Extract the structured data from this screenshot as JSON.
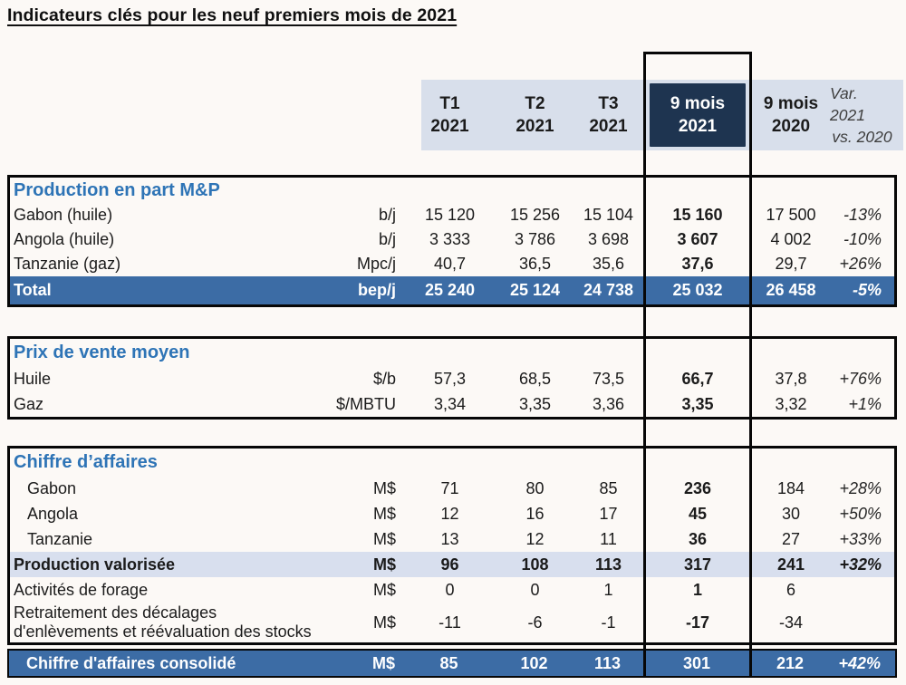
{
  "title": "Indicateurs clés pour les neuf premiers mois de 2021",
  "colors": {
    "accent_blue": "#2E74B6",
    "navy_header_cell": "#1E3450",
    "total_row_blue": "#3C6CA5",
    "header_band": "#D8DFEB",
    "subtotal_row_bg": "#D8DFEE"
  },
  "header": {
    "columns": [
      {
        "line1": "T1",
        "line2": "2021",
        "style": "bold"
      },
      {
        "line1": "T2",
        "line2": "2021",
        "style": "bold"
      },
      {
        "line1": "T3",
        "line2": "2021",
        "style": "bold"
      },
      {
        "line1": "9 mois",
        "line2": "2021",
        "style": "highlight"
      },
      {
        "line1": "9 mois",
        "line2": "2020",
        "style": "bold"
      },
      {
        "line1": "Var. 2021",
        "line2": "vs. 2020",
        "style": "italic"
      }
    ]
  },
  "sections": [
    {
      "title": "Production en part M&P",
      "rows": [
        {
          "label": "Gabon (huile)",
          "unit": "b/j",
          "indent": false,
          "style": "normal",
          "values": [
            "15 120",
            "15 256",
            "15 104",
            "15 160",
            "17 500",
            "-13%"
          ]
        },
        {
          "label": "Angola (huile)",
          "unit": "b/j",
          "indent": false,
          "style": "normal",
          "values": [
            "3 333",
            "3 786",
            "3 698",
            "3 607",
            "4 002",
            "-10%"
          ]
        },
        {
          "label": "Tanzanie (gaz)",
          "unit": "Mpc/j",
          "indent": false,
          "style": "normal",
          "values": [
            "40,7",
            "36,5",
            "35,6",
            "37,6",
            "29,7",
            "+26%"
          ]
        },
        {
          "label": "Total",
          "unit": "bep/j",
          "indent": false,
          "style": "total",
          "values": [
            "25 240",
            "25 124",
            "24 738",
            "25 032",
            "26 458",
            "-5%"
          ]
        }
      ]
    },
    {
      "title": "Prix de vente moyen",
      "rows": [
        {
          "label": "Huile",
          "unit": "$/b",
          "indent": false,
          "style": "normal",
          "values": [
            "57,3",
            "68,5",
            "73,5",
            "66,7",
            "37,8",
            "+76%"
          ]
        },
        {
          "label": "Gaz",
          "unit": "$/MBTU",
          "indent": false,
          "style": "normal",
          "values": [
            "3,34",
            "3,35",
            "3,36",
            "3,35",
            "3,32",
            "+1%"
          ]
        }
      ]
    },
    {
      "title": "Chiffre d’affaires",
      "rows": [
        {
          "label": "Gabon",
          "unit": "M$",
          "indent": true,
          "style": "normal",
          "values": [
            "71",
            "80",
            "85",
            "236",
            "184",
            "+28%"
          ]
        },
        {
          "label": "Angola",
          "unit": "M$",
          "indent": true,
          "style": "normal",
          "values": [
            "12",
            "16",
            "17",
            "45",
            "30",
            "+50%"
          ]
        },
        {
          "label": "Tanzanie",
          "unit": "M$",
          "indent": true,
          "style": "normal",
          "values": [
            "13",
            "12",
            "11",
            "36",
            "27",
            "+33%"
          ]
        },
        {
          "label": "Production valorisée",
          "unit": "M$",
          "indent": false,
          "style": "subtotal",
          "values": [
            "96",
            "108",
            "113",
            "317",
            "241",
            "+32%"
          ]
        },
        {
          "label": "Activités de forage",
          "unit": "M$",
          "indent": false,
          "style": "normal",
          "values": [
            "0",
            "0",
            "1",
            "1",
            "6",
            ""
          ]
        },
        {
          "label": "Retraitement des décalages\nd'enlèvements et réévaluation des stocks",
          "unit": "M$",
          "indent": false,
          "style": "normal",
          "tall": true,
          "values": [
            "-11",
            "-6",
            "-1",
            "-17",
            "-34",
            ""
          ]
        }
      ]
    }
  ],
  "consolidated": {
    "label": "Chiffre d'affaires consolidé",
    "unit": "M$",
    "indent": true,
    "style": "total",
    "values": [
      "85",
      "102",
      "113",
      "301",
      "212",
      "+42%"
    ]
  }
}
